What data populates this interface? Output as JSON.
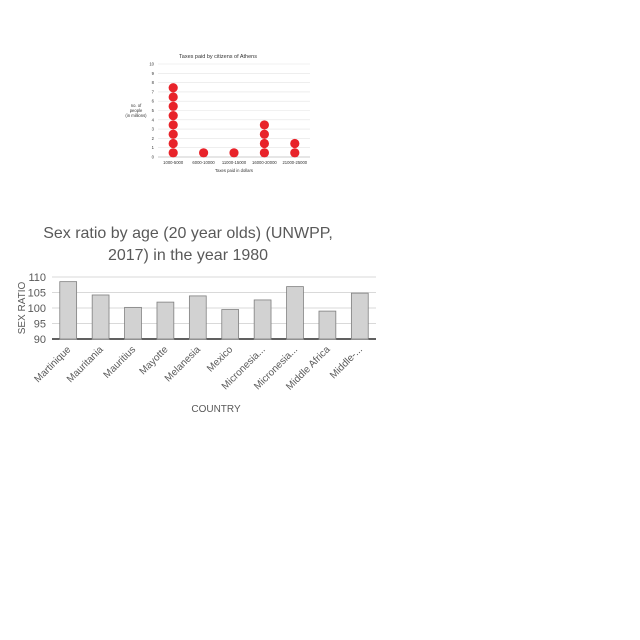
{
  "chart_data": [
    {
      "type": "scatter",
      "title": "Taxes paid by citizens of Athens",
      "xlabel": "Taxes paid in dollars",
      "ylabel": [
        "no. of",
        "people",
        "(in millions)"
      ],
      "categories": [
        "1000-5000",
        "6000-10000",
        "11000-15000",
        "16000-20000",
        "21000-25000"
      ],
      "counts": [
        8,
        1,
        1,
        4,
        2
      ],
      "ylim": [
        0,
        10
      ],
      "yticks": [
        "0",
        "1",
        "2",
        "3",
        "4",
        "5",
        "6",
        "7",
        "8",
        "9",
        "10"
      ],
      "grid": true,
      "marker_color": "#e8232a"
    },
    {
      "type": "bar",
      "title": [
        "Sex ratio by age (20 year olds) (UNWPP,",
        "2017) in the year 1980"
      ],
      "xlabel": "COUNTRY",
      "ylabel": "SEX RATIO",
      "categories": [
        "Martinique",
        "Mauritania",
        "Mauritius",
        "Mayotte",
        "Melanesia",
        "Mexico",
        "Micronesia...",
        "Micronesia...",
        "Middle Africa",
        "Middle-..."
      ],
      "values": [
        108.5,
        104.2,
        100.2,
        101.9,
        103.9,
        99.5,
        102.6,
        106.9,
        99.0,
        104.8
      ],
      "ylim": [
        90,
        110
      ],
      "yticks": [
        "90",
        "95",
        "100",
        "105",
        "110"
      ],
      "grid": true,
      "bar_color": "#d2d2d2"
    }
  ]
}
